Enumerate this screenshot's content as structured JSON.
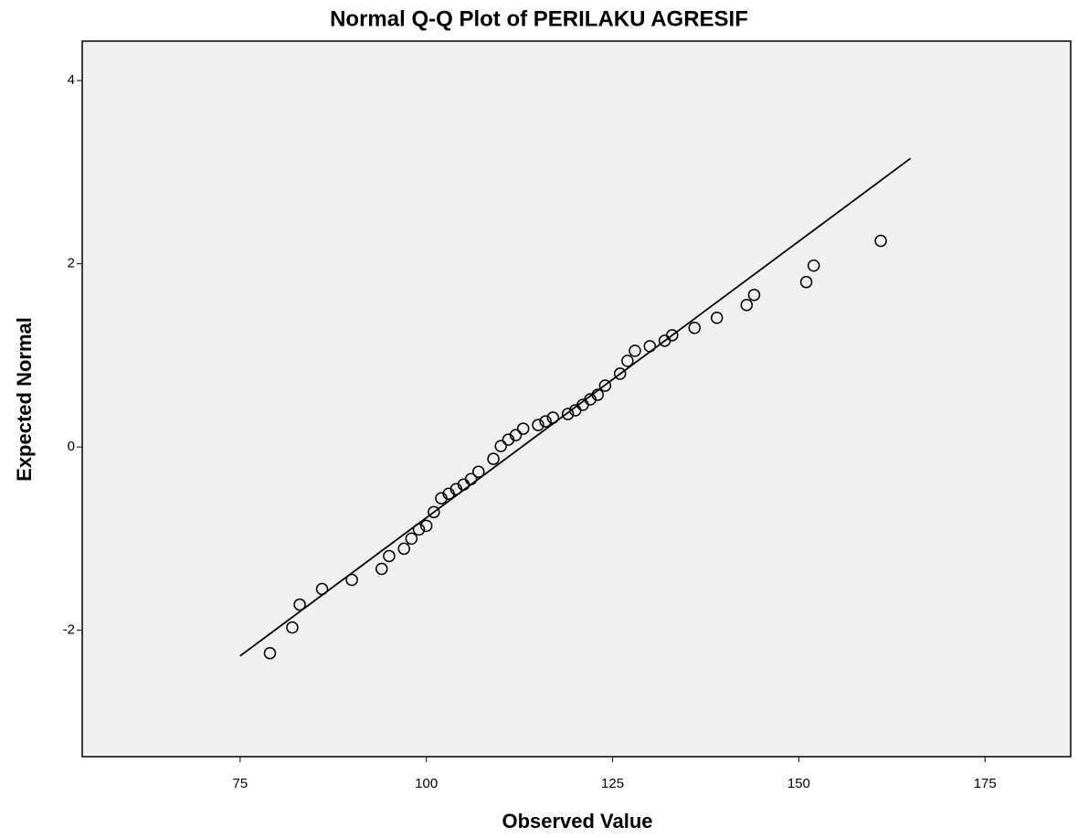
{
  "chart_data": {
    "type": "scatter",
    "title": "Normal Q-Q Plot of PERILAKU AGRESIF",
    "xlabel": "Observed Value",
    "ylabel": "Expected Normal",
    "x": [
      79,
      82,
      83,
      86,
      90,
      94,
      95,
      97,
      98,
      99,
      100,
      101,
      102,
      103,
      104,
      105,
      106,
      107,
      109,
      110,
      111,
      112,
      113,
      115,
      116,
      117,
      119,
      120,
      121,
      122,
      123,
      124,
      126,
      127,
      128,
      130,
      132,
      133,
      136,
      139,
      143,
      144,
      151,
      152,
      161
    ],
    "y": [
      -2.25,
      -1.97,
      -1.72,
      -1.55,
      -1.45,
      -1.33,
      -1.19,
      -1.11,
      -1.0,
      -0.9,
      -0.86,
      -0.71,
      -0.56,
      -0.51,
      -0.46,
      -0.41,
      -0.35,
      -0.27,
      -0.13,
      0.01,
      0.08,
      0.13,
      0.2,
      0.24,
      0.28,
      0.32,
      0.36,
      0.4,
      0.46,
      0.52,
      0.57,
      0.67,
      0.8,
      0.94,
      1.05,
      1.1,
      1.16,
      1.22,
      1.3,
      1.41,
      1.55,
      1.66,
      1.8,
      1.98,
      2.25
    ],
    "reference_line": {
      "x": [
        75,
        165
      ],
      "y": [
        -2.28,
        3.15
      ]
    },
    "marker_color": "#000000",
    "line_color": "#000000",
    "background": "#f0f0f0",
    "xlim": [
      53.8,
      186.5
    ],
    "ylim": [
      -3.38,
      4.43
    ],
    "xticks": [
      75,
      100,
      125,
      150,
      175
    ],
    "yticks": [
      4,
      2,
      0,
      -2
    ]
  }
}
